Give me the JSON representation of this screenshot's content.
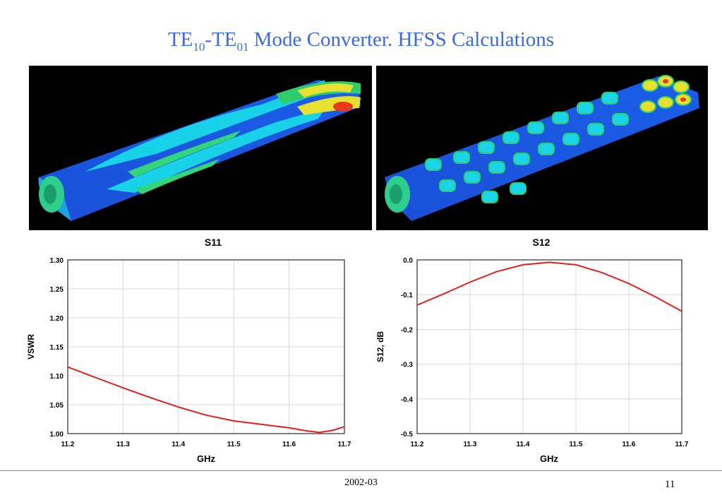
{
  "title": {
    "a": "TE",
    "a_sub": "10",
    "dash": "-TE",
    "b_sub": "01",
    "rest": " Mode Converter. HFSS Calculations"
  },
  "colors": {
    "title": "#3a6ae0",
    "curve": "#e0201c",
    "grid": "#d8d8d8"
  },
  "footer": {
    "date": "2002-03",
    "page": "11"
  },
  "chart_data": [
    {
      "type": "line",
      "title": "S11",
      "xlabel": "GHz",
      "ylabel": "VSWR",
      "xlim": [
        11.2,
        11.7
      ],
      "ylim": [
        1.0,
        1.3
      ],
      "xticks": [
        "11.2",
        "11.3",
        "11.4",
        "11.5",
        "11.6",
        "11.7"
      ],
      "yticks": [
        "1.30",
        "1.25",
        "1.20",
        "1.15",
        "1.10",
        "1.05",
        "1.00"
      ],
      "grid": true,
      "series": [
        {
          "x": [
            11.2,
            11.25,
            11.3,
            11.35,
            11.4,
            11.45,
            11.5,
            11.55,
            11.6,
            11.63,
            11.655,
            11.68,
            11.7
          ],
          "y": [
            1.115,
            1.097,
            1.079,
            1.062,
            1.046,
            1.032,
            1.022,
            1.016,
            1.01,
            1.005,
            1.002,
            1.006,
            1.012
          ]
        }
      ]
    },
    {
      "type": "line",
      "title": "S12",
      "xlabel": "GHz",
      "ylabel": "S12, dB",
      "xlim": [
        11.2,
        11.7
      ],
      "ylim": [
        -0.5,
        0.0
      ],
      "xticks": [
        "11.2",
        "11.3",
        "11.4",
        "11.5",
        "11.6",
        "11.7"
      ],
      "yticks": [
        "0.0",
        "-0.1",
        "-0.2",
        "-0.3",
        "-0.4",
        "-0.5"
      ],
      "grid": true,
      "series": [
        {
          "x": [
            11.2,
            11.25,
            11.3,
            11.35,
            11.4,
            11.45,
            11.5,
            11.55,
            11.6,
            11.65,
            11.7
          ],
          "y": [
            -0.13,
            -0.098,
            -0.064,
            -0.034,
            -0.014,
            -0.007,
            -0.014,
            -0.037,
            -0.068,
            -0.106,
            -0.148
          ]
        }
      ]
    }
  ]
}
